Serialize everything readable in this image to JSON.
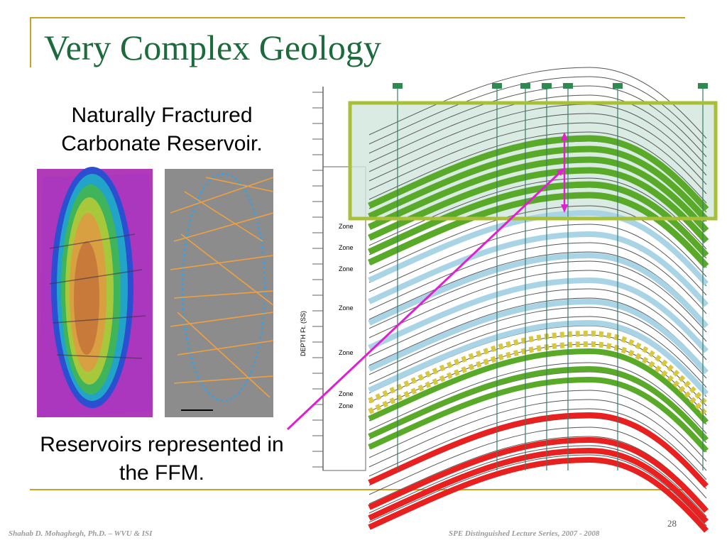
{
  "title": "Very Complex Geology",
  "captions": [
    [
      "Naturally Fractured",
      "Carbonate Reservoir."
    ],
    [
      "Reservoirs represented in",
      "the FFM."
    ]
  ],
  "figure": {
    "depth_axis": "DEPTH Ft. (SS)",
    "zones": [
      "Zone",
      "Zone",
      "Zone",
      "Zone",
      "Zone",
      "Zone",
      "Zone"
    ]
  },
  "footer": {
    "left": "Shahab D. Mohaghegh, Ph.D. – WVU & ISI",
    "right": "SPE Distinguished Lecture Series, 2007 - 2008",
    "page": "28"
  }
}
